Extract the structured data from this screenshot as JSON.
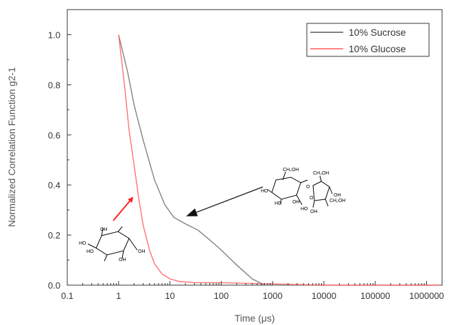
{
  "chart_data": {
    "type": "line",
    "xlabel": "Time (μs)",
    "ylabel": "Normalized Correlation Function g2-1",
    "x_scale": "log",
    "xlim": [
      0.1,
      2000000
    ],
    "ylim": [
      0.0,
      1.1
    ],
    "x_ticks": [
      "0.1",
      "1",
      "10",
      "100",
      "1000",
      "10000",
      "100000",
      "1000000"
    ],
    "y_ticks": [
      "0.0",
      "0.2",
      "0.4",
      "0.6",
      "0.8",
      "1.0"
    ],
    "grid": false,
    "legend_position": "top-right",
    "series": [
      {
        "name": "10% Sucrose",
        "color": "#808080",
        "legend_color": "#000000",
        "x": [
          1,
          1.5,
          2,
          3,
          5,
          8,
          12,
          20,
          35,
          60,
          100,
          200,
          400,
          700,
          2000,
          10000,
          100000,
          1000000,
          1800000
        ],
        "y": [
          1.0,
          0.85,
          0.72,
          0.58,
          0.42,
          0.32,
          0.27,
          0.245,
          0.22,
          0.18,
          0.14,
          0.08,
          0.025,
          0.0,
          0.0,
          0.0,
          0.0,
          0.0,
          0.0
        ]
      },
      {
        "name": "10% Glucose",
        "color": "#ff7070",
        "legend_color": "#ff0000",
        "x": [
          1,
          1.3,
          1.6,
          2,
          2.5,
          3,
          4,
          5,
          7,
          10,
          15,
          30,
          100,
          1000,
          10000,
          100000,
          1000000,
          1800000
        ],
        "y": [
          1.0,
          0.8,
          0.62,
          0.48,
          0.34,
          0.24,
          0.14,
          0.085,
          0.045,
          0.025,
          0.015,
          0.01,
          0.01,
          0.005,
          0.0,
          0.0,
          0.0,
          0.0
        ]
      }
    ],
    "annotations": [
      {
        "type": "arrow",
        "color": "#ff2020",
        "points_to": "10% Glucose"
      },
      {
        "type": "arrow",
        "color": "#222222",
        "points_to": "10% Sucrose"
      }
    ],
    "molecules": {
      "glucose_labels": [
        "OH",
        "HO",
        "HO",
        "OH",
        "OH"
      ],
      "sucrose_labels": [
        "CH₂OH",
        "CH₂OH",
        "O",
        "HO",
        "HO",
        "OH",
        "O",
        "OH",
        "HO",
        "CH₂OH",
        "OH"
      ]
    }
  }
}
